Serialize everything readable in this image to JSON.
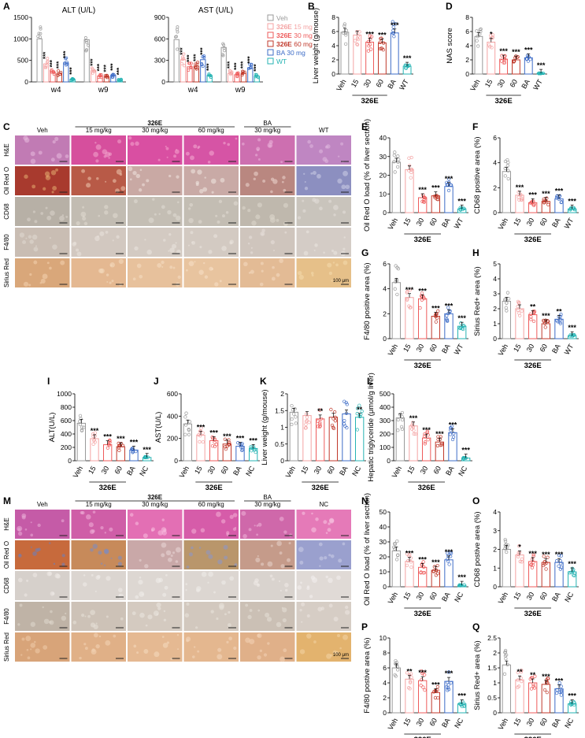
{
  "colors": {
    "veh": "#9a9a9a",
    "d15": "#f4a3a3",
    "d30": "#ee5b5b",
    "d60": "#c0392b",
    "ba": "#3d6cc7",
    "wt": "#25b3b3",
    "nc": "#25b3b3",
    "red": "#d9282f"
  },
  "compound": "326E",
  "sig": {
    "three": "***",
    "two": "**",
    "one": "*"
  },
  "panel_ab": {
    "ALT_title": "ALT (U/L)",
    "AST_title": "AST (U/L)",
    "w4": "w4",
    "w9": "w9",
    "legend": [
      {
        "prefix": "",
        "bold": "",
        "text": "Veh",
        "color": "#9a9a9a"
      },
      {
        "prefix": "",
        "bold": "326E",
        "text": " 15 mg",
        "color": "#f4a3a3"
      },
      {
        "prefix": "",
        "bold": "326E",
        "text": " 30 mg",
        "color": "#ee5b5b"
      },
      {
        "prefix": "",
        "bold": "326E",
        "text": " 60 mg",
        "color": "#c0392b"
      },
      {
        "prefix": "",
        "bold": "",
        "text": "BA 30 mg",
        "color": "#3d6cc7"
      },
      {
        "prefix": "",
        "bold": "",
        "text": "WT",
        "color": "#25b3b3"
      }
    ]
  },
  "histo_c": {
    "header": [
      "Veh",
      "15 mg/kg",
      "30 mg/kg",
      "60 mg/kg",
      "30 mg/kg",
      "WT"
    ],
    "group_326E": "326E",
    "group_BA": "BA",
    "rows": [
      "H&E",
      "Oil Red O",
      "CD68",
      "F4/80",
      "Sirius Red"
    ],
    "scale": "100 μm"
  },
  "histo_m": {
    "header": [
      "Veh",
      "15 mg/kg",
      "30 mg/kg",
      "60 mg/kg",
      "30 mg/kg",
      "NC"
    ],
    "group_326E": "326E",
    "group_BA": "BA",
    "rows": [
      "H&E",
      "Oil Red O",
      "CD68",
      "F4/80",
      "Sirius Red"
    ],
    "scale": "100 μm"
  },
  "chart_data": [
    {
      "panel": "A",
      "type": "bar",
      "title": "ALT (U/L)",
      "categories": [
        "w4",
        "w9"
      ],
      "ylim": [
        0,
        1500
      ],
      "yticks": [
        0,
        500,
        1000,
        1500
      ],
      "series": [
        {
          "name": "Veh",
          "values": [
            1000,
            980
          ]
        },
        {
          "name": "326E 15 mg",
          "values": [
            420,
            260
          ]
        },
        {
          "name": "326E 30 mg",
          "values": [
            230,
            140
          ]
        },
        {
          "name": "326E 60 mg",
          "values": [
            200,
            120
          ]
        },
        {
          "name": "BA 30 mg",
          "values": [
            440,
            150
          ]
        },
        {
          "name": "WT",
          "values": [
            60,
            50
          ]
        }
      ],
      "sig": [
        [
          "***",
          "***",
          "***",
          "***",
          "***"
        ],
        [
          "***",
          "***",
          "***",
          "***",
          "***"
        ]
      ]
    },
    {
      "panel": "A2",
      "type": "bar",
      "title": "AST (U/L)",
      "categories": [
        "w4",
        "w9"
      ],
      "ylim": [
        0,
        900
      ],
      "yticks": [
        0,
        300,
        600,
        900
      ],
      "series": [
        {
          "name": "Veh",
          "values": [
            590,
            480
          ]
        },
        {
          "name": "326E 15 mg",
          "values": [
            310,
            120
          ]
        },
        {
          "name": "326E 30 mg",
          "values": [
            210,
            100
          ]
        },
        {
          "name": "326E 60 mg",
          "values": [
            220,
            120
          ]
        },
        {
          "name": "BA 30 mg",
          "values": [
            310,
            190
          ]
        },
        {
          "name": "WT",
          "values": [
            90,
            80
          ]
        }
      ],
      "sig": [
        [
          "***",
          "***",
          "***",
          "***",
          "***"
        ],
        [
          "***",
          "***",
          "***",
          "***",
          "***"
        ]
      ]
    },
    {
      "panel": "B",
      "type": "bar",
      "ylabel": "Liver weight (g/mouse)",
      "categories": [
        "Veh",
        "15",
        "30",
        "60",
        "BA",
        "WT"
      ],
      "values": [
        5.9,
        5.5,
        4.5,
        4.4,
        5.8,
        1.1
      ],
      "ylim": [
        0,
        8
      ],
      "yticks": [
        0,
        2,
        4,
        6,
        8
      ],
      "sig": [
        "",
        "",
        "***",
        "***",
        "***",
        "***"
      ],
      "group": "326E",
      "wt": true
    },
    {
      "panel": "D",
      "type": "bar",
      "ylabel": "NAS score",
      "categories": [
        "Veh",
        "15",
        "30",
        "60",
        "BA",
        "WT"
      ],
      "values": [
        5.3,
        4.5,
        2.1,
        2.0,
        2.3,
        0.1
      ],
      "ylim": [
        0,
        8
      ],
      "yticks": [
        0,
        2,
        4,
        6,
        8
      ],
      "sig": [
        "",
        "*",
        "***",
        "***",
        "***",
        "***"
      ],
      "group": "326E",
      "wt": true
    },
    {
      "panel": "E",
      "type": "bar",
      "ylabel": "Oil Red O load (% of liver section)",
      "categories": [
        "Veh",
        "15",
        "30",
        "60",
        "BA",
        "WT"
      ],
      "values": [
        27,
        23,
        8,
        9,
        14,
        2
      ],
      "ylim": [
        0,
        40
      ],
      "yticks": [
        0,
        10,
        20,
        30,
        40
      ],
      "sig": [
        "",
        "",
        "***",
        "***",
        "***",
        "***"
      ],
      "group": "326E",
      "wt": true
    },
    {
      "panel": "F",
      "type": "bar",
      "ylabel": "CD68 positive area (%)",
      "categories": [
        "Veh",
        "15",
        "30",
        "60",
        "BA",
        "WT"
      ],
      "values": [
        3.3,
        1.4,
        0.8,
        0.9,
        1.1,
        0.3
      ],
      "ylim": [
        0,
        6
      ],
      "yticks": [
        0,
        2,
        4,
        6
      ],
      "sig": [
        "",
        "***",
        "***",
        "***",
        "***",
        "***"
      ],
      "group": "326E",
      "wt": true
    },
    {
      "panel": "G",
      "type": "bar",
      "ylabel": "F4/80 positive area (%)",
      "categories": [
        "Veh",
        "15",
        "30",
        "60",
        "BA",
        "WT"
      ],
      "values": [
        4.5,
        3.3,
        3.2,
        1.8,
        2.0,
        1.0
      ],
      "ylim": [
        0,
        6
      ],
      "yticks": [
        0,
        2,
        4,
        6
      ],
      "sig": [
        "",
        "***",
        "***",
        "***",
        "***",
        "***"
      ],
      "group": "326E",
      "wt": true
    },
    {
      "panel": "H",
      "type": "bar",
      "ylabel": "Sirius Red+ area (%)",
      "categories": [
        "Veh",
        "15",
        "30",
        "60",
        "BA",
        "WT"
      ],
      "values": [
        2.5,
        2.0,
        1.6,
        1.0,
        1.3,
        0.2
      ],
      "ylim": [
        0,
        5
      ],
      "yticks": [
        0,
        1,
        2,
        3,
        4,
        5
      ],
      "sig": [
        "",
        "",
        "**",
        "***",
        "**",
        "***"
      ],
      "group": "326E",
      "wt": true
    },
    {
      "panel": "I",
      "type": "bar",
      "ylabel": "ALT(U/L)",
      "categories": [
        "Veh",
        "15",
        "30",
        "60",
        "BA",
        "NC"
      ],
      "values": [
        560,
        330,
        240,
        210,
        160,
        50
      ],
      "ylim": [
        0,
        1000
      ],
      "yticks": [
        0,
        200,
        400,
        600,
        800,
        1000
      ],
      "sig": [
        "",
        "***",
        "***",
        "***",
        "***",
        "***"
      ],
      "group": "326E",
      "wt": false
    },
    {
      "panel": "J",
      "type": "bar",
      "ylabel": "AST(U/L)",
      "categories": [
        "Veh",
        "15",
        "30",
        "60",
        "BA",
        "NC"
      ],
      "values": [
        330,
        230,
        180,
        150,
        130,
        110
      ],
      "ylim": [
        0,
        600
      ],
      "yticks": [
        0,
        200,
        400,
        600
      ],
      "sig": [
        "",
        "***",
        "***",
        "***",
        "***",
        "***"
      ],
      "group": "326E",
      "wt": false
    },
    {
      "panel": "K",
      "type": "bar",
      "ylabel": "Liver weight (g/mouse)",
      "categories": [
        "Veh",
        "15",
        "30",
        "60",
        "BA",
        "NC"
      ],
      "values": [
        1.45,
        1.35,
        1.25,
        1.3,
        1.4,
        1.3
      ],
      "ylim": [
        0,
        2.0
      ],
      "yticks": [
        0,
        0.5,
        1.0,
        1.5,
        2.0
      ],
      "sig": [
        "",
        "",
        "**",
        "",
        "",
        "**"
      ],
      "group": "326E",
      "wt": false
    },
    {
      "panel": "L",
      "type": "bar",
      "ylabel": "Hepatic triglyceride (μmol/g liver)",
      "categories": [
        "Veh",
        "15",
        "30",
        "60",
        "BA",
        "NC"
      ],
      "values": [
        320,
        260,
        170,
        140,
        210,
        20
      ],
      "ylim": [
        0,
        500
      ],
      "yticks": [
        0,
        100,
        200,
        300,
        400,
        500
      ],
      "sig": [
        "",
        "***",
        "***",
        "***",
        "***",
        "***"
      ],
      "group": "326E",
      "wt": false
    },
    {
      "panel": "N",
      "type": "bar",
      "ylabel": "Oil Red O load (% of liver section)",
      "categories": [
        "Veh",
        "15",
        "30",
        "60",
        "BA",
        "NC"
      ],
      "values": [
        24,
        17,
        13,
        11,
        18,
        1
      ],
      "ylim": [
        0,
        50
      ],
      "yticks": [
        0,
        10,
        20,
        30,
        40,
        50
      ],
      "sig": [
        "",
        "***",
        "***",
        "***",
        "***",
        "***"
      ],
      "group": "326E",
      "wt": false
    },
    {
      "panel": "O",
      "type": "bar",
      "ylabel": "CD68 postive area (%)",
      "categories": [
        "Veh",
        "15",
        "30",
        "60",
        "BA",
        "NC"
      ],
      "values": [
        2.0,
        1.7,
        1.35,
        1.3,
        1.3,
        0.8
      ],
      "ylim": [
        0,
        4
      ],
      "yticks": [
        0,
        1,
        2,
        3,
        4
      ],
      "sig": [
        "",
        "*",
        "***",
        "***",
        "***",
        "***"
      ],
      "group": "326E",
      "wt": false
    },
    {
      "panel": "P",
      "type": "bar",
      "ylabel": "F4/80 postive area (%)",
      "categories": [
        "Veh",
        "15",
        "30",
        "60",
        "BA",
        "NC"
      ],
      "values": [
        6.0,
        4.5,
        4.3,
        2.7,
        4.2,
        1.2
      ],
      "ylim": [
        0,
        10
      ],
      "yticks": [
        0,
        2,
        4,
        6,
        8,
        10
      ],
      "sig": [
        "",
        "**",
        "***",
        "***",
        "***",
        "***"
      ],
      "group": "326E",
      "wt": false
    },
    {
      "panel": "Q",
      "type": "bar",
      "ylabel": "Sirius Red+ area (%)",
      "categories": [
        "Veh",
        "15",
        "30",
        "60",
        "BA",
        "NC"
      ],
      "values": [
        1.6,
        1.1,
        1.0,
        0.95,
        0.8,
        0.3
      ],
      "ylim": [
        0,
        2.5
      ],
      "yticks": [
        0,
        0.5,
        1.0,
        1.5,
        2.0,
        2.5
      ],
      "sig": [
        "",
        "**",
        "**",
        "***",
        "***",
        "***"
      ],
      "group": "326E",
      "wt": false
    }
  ]
}
